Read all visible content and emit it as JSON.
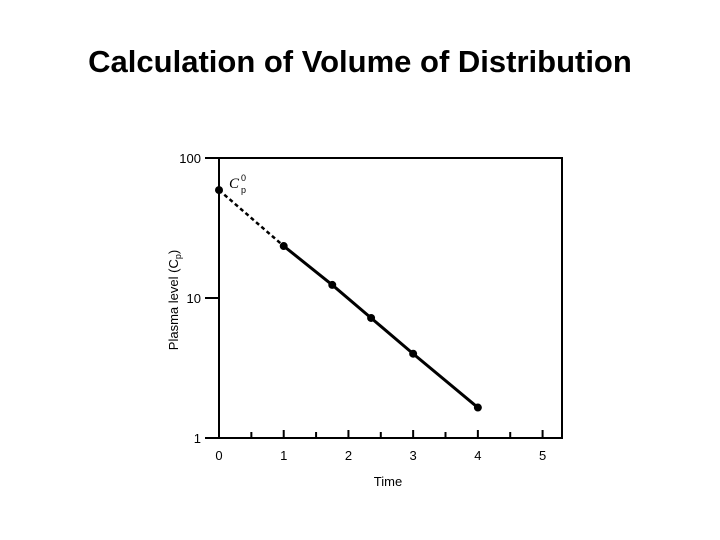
{
  "slide": {
    "title": "Calculation of Volume of Distribution"
  },
  "chart_data": {
    "type": "line",
    "yscale": "log",
    "xlabel": "Time",
    "ylabel": "Plasma level (C",
    "ylabel_sub": "p",
    "ylabel_close": ")",
    "xlim": [
      0,
      5.3
    ],
    "ylim": [
      1,
      100
    ],
    "xticks": [
      "0",
      "1",
      "2",
      "3",
      "4",
      "5"
    ],
    "yticks": [
      "1",
      "10",
      "100"
    ],
    "grid": false,
    "series": [
      {
        "values_x": [
          0,
          1,
          1.75,
          2.35,
          3,
          4
        ],
        "values_y": [
          59,
          23.5,
          12.4,
          7.2,
          4,
          1.65
        ]
      }
    ],
    "extrapolation": {
      "from_x": 0,
      "to_x": 1,
      "style": "dashed"
    },
    "annotation": {
      "text": "C",
      "sup": "0",
      "sub": "p"
    }
  }
}
